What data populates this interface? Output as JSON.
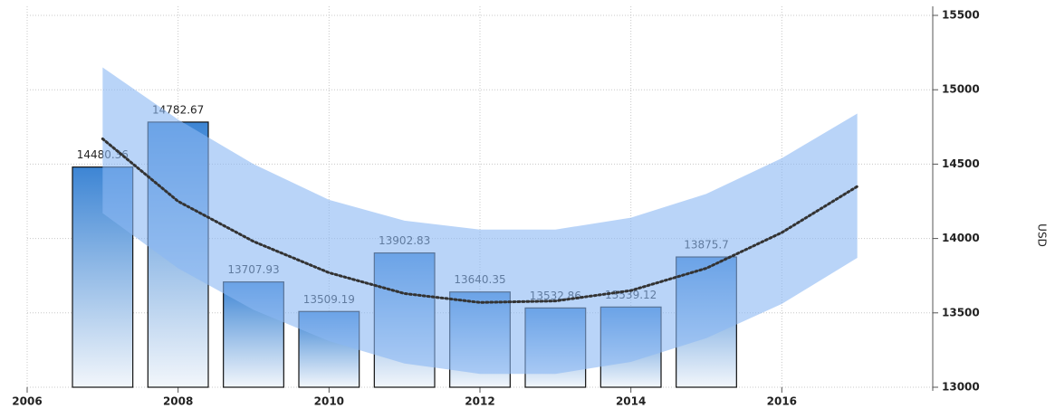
{
  "chart_data": {
    "type": "bar",
    "x": [
      2007,
      2008,
      2009,
      2010,
      2011,
      2012,
      2013,
      2014,
      2015
    ],
    "values": [
      14480.36,
      14782.67,
      13707.93,
      13509.19,
      13902.83,
      13640.35,
      13532.86,
      13539.12,
      13875.7
    ],
    "color": "#3d85d4",
    "trend": {
      "x": [
        2007,
        2008,
        2009,
        2010,
        2011,
        2012,
        2013,
        2014,
        2015,
        2016,
        2017
      ],
      "values": [
        14670,
        14250,
        13980,
        13770,
        13630,
        13570,
        13580,
        13650,
        13800,
        14040,
        14350
      ],
      "color": "#333333"
    },
    "band": {
      "x": [
        2007,
        2008,
        2009,
        2010,
        2011,
        2012,
        2013,
        2014,
        2015,
        2016,
        2017
      ],
      "upper": [
        15150,
        14800,
        14500,
        14260,
        14120,
        14060,
        14060,
        14140,
        14300,
        14540,
        14840
      ],
      "lower": [
        14170,
        13800,
        13520,
        13310,
        13160,
        13090,
        13090,
        13170,
        13330,
        13560,
        13870
      ],
      "color": "#8bb8f3"
    },
    "xlim": [
      2006,
      2018
    ],
    "xticks": [
      2006,
      2008,
      2010,
      2012,
      2014,
      2016
    ],
    "ylim": [
      13000,
      15500
    ],
    "yticks": [
      13000,
      13500,
      14000,
      14500,
      15000,
      15500
    ],
    "y_label": "USD",
    "grid": true
  }
}
